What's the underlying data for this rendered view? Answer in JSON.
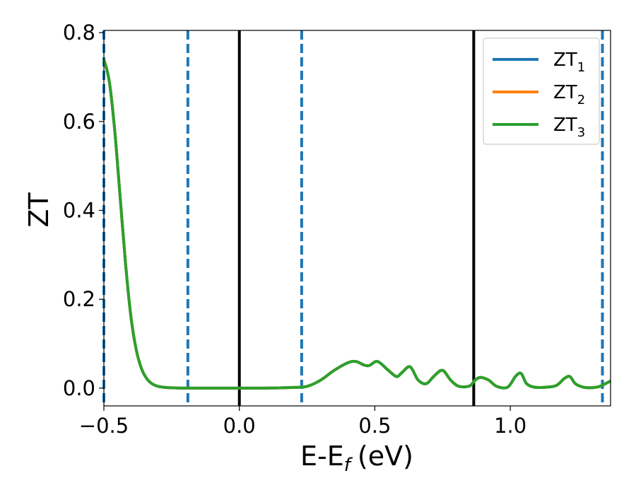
{
  "chart_data": {
    "type": "line",
    "xlabel": "E-E",
    "xlabel_sub": "f",
    "xlabel_unit": "(eV)",
    "ylabel": "ZT",
    "xlim": [
      -0.5,
      1.37
    ],
    "ylim": [
      -0.04,
      0.805
    ],
    "x_ticks": [
      -0.5,
      0.0,
      0.5,
      1.0
    ],
    "x_tick_labels": [
      "−0.5",
      "0.0",
      "0.5",
      "1.0"
    ],
    "y_ticks": [
      0.0,
      0.2,
      0.4,
      0.6,
      0.8
    ],
    "y_tick_labels": [
      "0.0",
      "0.2",
      "0.4",
      "0.6",
      "0.8"
    ],
    "grid": false,
    "legend_position": "top-right",
    "series": [
      {
        "name": "ZT",
        "sub": "1",
        "color": "#1f77b4"
      },
      {
        "name": "ZT",
        "sub": "2",
        "color": "#ff7f0e"
      },
      {
        "name": "ZT",
        "sub": "3",
        "color": "#2ca02c"
      }
    ],
    "curve": {
      "x": [
        -0.5,
        -0.48,
        -0.46,
        -0.44,
        -0.42,
        -0.4,
        -0.38,
        -0.36,
        -0.34,
        -0.32,
        -0.3,
        -0.28,
        -0.26,
        -0.24,
        -0.2,
        -0.1,
        0.0,
        0.1,
        0.2,
        0.25,
        0.3,
        0.35,
        0.4,
        0.43,
        0.46,
        0.48,
        0.51,
        0.55,
        0.58,
        0.6,
        0.63,
        0.66,
        0.69,
        0.72,
        0.75,
        0.78,
        0.81,
        0.85,
        0.87,
        0.89,
        0.92,
        0.95,
        0.99,
        1.02,
        1.04,
        1.06,
        1.09,
        1.13,
        1.17,
        1.2,
        1.22,
        1.24,
        1.27,
        1.3,
        1.33,
        1.37
      ],
      "y": [
        0.74,
        0.69,
        0.58,
        0.43,
        0.28,
        0.16,
        0.085,
        0.042,
        0.02,
        0.009,
        0.004,
        0.002,
        0.001,
        0.0005,
        0.0,
        0.0,
        0.0,
        0.0,
        0.0015,
        0.004,
        0.018,
        0.04,
        0.057,
        0.06,
        0.052,
        0.051,
        0.06,
        0.04,
        0.026,
        0.035,
        0.048,
        0.018,
        0.01,
        0.028,
        0.04,
        0.018,
        0.004,
        0.005,
        0.018,
        0.024,
        0.018,
        0.004,
        0.002,
        0.027,
        0.033,
        0.01,
        0.002,
        0.002,
        0.006,
        0.022,
        0.026,
        0.01,
        0.002,
        0.001,
        0.004,
        0.016
      ]
    },
    "vlines_solid": [
      0.0,
      0.865
    ],
    "vlines_dashed": [
      -0.5,
      -0.19,
      0.23,
      1.34
    ]
  }
}
